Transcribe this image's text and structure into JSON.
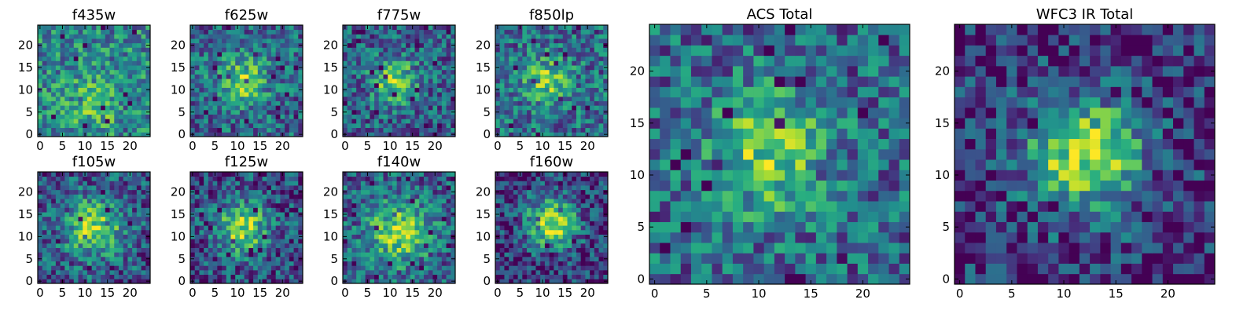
{
  "chart_data": [
    {
      "type": "heatmap",
      "title": "f435w",
      "grid_size": 25,
      "xlim": [
        -0.5,
        24.5
      ],
      "ylim": [
        -0.5,
        24.5
      ],
      "xticks": [
        0,
        5,
        10,
        15,
        20
      ],
      "yticks": [
        0,
        5,
        10,
        15,
        20
      ],
      "colormap": "viridis",
      "peak": [
        12,
        7
      ],
      "signal": 0.25,
      "sigma": 4.0,
      "seed": 11
    },
    {
      "type": "heatmap",
      "title": "f625w",
      "grid_size": 25,
      "xlim": [
        -0.5,
        24.5
      ],
      "ylim": [
        -0.5,
        24.5
      ],
      "xticks": [
        0,
        5,
        10,
        15,
        20
      ],
      "yticks": [
        0,
        5,
        10,
        15,
        20
      ],
      "colormap": "viridis",
      "peak": [
        11,
        12
      ],
      "signal": 0.45,
      "sigma": 4.0,
      "seed": 23
    },
    {
      "type": "heatmap",
      "title": "f775w",
      "grid_size": 25,
      "xlim": [
        -0.5,
        24.5
      ],
      "ylim": [
        -0.5,
        24.5
      ],
      "xticks": [
        0,
        5,
        10,
        15,
        20
      ],
      "yticks": [
        0,
        5,
        10,
        15,
        20
      ],
      "colormap": "viridis",
      "peak": [
        11,
        12
      ],
      "signal": 0.5,
      "sigma": 3.5,
      "seed": 37
    },
    {
      "type": "heatmap",
      "title": "f850lp",
      "grid_size": 25,
      "xlim": [
        -0.5,
        24.5
      ],
      "ylim": [
        -0.5,
        24.5
      ],
      "xticks": [
        0,
        5,
        10,
        15,
        20
      ],
      "yticks": [
        0,
        5,
        10,
        15,
        20
      ],
      "colormap": "viridis",
      "peak": [
        11,
        12
      ],
      "signal": 0.4,
      "sigma": 3.5,
      "seed": 41
    },
    {
      "type": "heatmap",
      "title": "f105w",
      "grid_size": 25,
      "xlim": [
        -0.5,
        24.5
      ],
      "ylim": [
        -0.5,
        24.5
      ],
      "xticks": [
        0,
        5,
        10,
        15,
        20
      ],
      "yticks": [
        0,
        5,
        10,
        15,
        20
      ],
      "colormap": "viridis",
      "peak": [
        12,
        12
      ],
      "signal": 0.55,
      "sigma": 4.5,
      "seed": 53
    },
    {
      "type": "heatmap",
      "title": "f125w",
      "grid_size": 25,
      "xlim": [
        -0.5,
        24.5
      ],
      "ylim": [
        -0.5,
        24.5
      ],
      "xticks": [
        0,
        5,
        10,
        15,
        20
      ],
      "yticks": [
        0,
        5,
        10,
        15,
        20
      ],
      "colormap": "viridis",
      "peak": [
        11,
        12
      ],
      "signal": 0.6,
      "sigma": 4.0,
      "seed": 67
    },
    {
      "type": "heatmap",
      "title": "f140w",
      "grid_size": 25,
      "xlim": [
        -0.5,
        24.5
      ],
      "ylim": [
        -0.5,
        24.5
      ],
      "xticks": [
        0,
        5,
        10,
        15,
        20
      ],
      "yticks": [
        0,
        5,
        10,
        15,
        20
      ],
      "colormap": "viridis",
      "peak": [
        12,
        11
      ],
      "signal": 0.5,
      "sigma": 5.0,
      "seed": 71
    },
    {
      "type": "heatmap",
      "title": "f160w",
      "grid_size": 25,
      "xlim": [
        -0.5,
        24.5
      ],
      "ylim": [
        -0.5,
        24.5
      ],
      "xticks": [
        0,
        5,
        10,
        15,
        20
      ],
      "yticks": [
        0,
        5,
        10,
        15,
        20
      ],
      "colormap": "viridis",
      "peak": [
        12,
        13
      ],
      "signal": 0.7,
      "sigma": 4.0,
      "seed": 83
    },
    {
      "type": "heatmap",
      "title": "ACS Total",
      "grid_size": 25,
      "xlim": [
        -0.5,
        24.5
      ],
      "ylim": [
        -0.5,
        24.5
      ],
      "xticks": [
        0,
        5,
        10,
        15,
        20
      ],
      "yticks": [
        0,
        5,
        10,
        15,
        20
      ],
      "colormap": "viridis",
      "peak": [
        11,
        12
      ],
      "signal": 0.45,
      "sigma": 4.0,
      "seed": 97
    },
    {
      "type": "heatmap",
      "title": "WFC3 IR Total",
      "grid_size": 25,
      "xlim": [
        -0.5,
        24.5
      ],
      "ylim": [
        -0.5,
        24.5
      ],
      "xticks": [
        0,
        5,
        10,
        15,
        20
      ],
      "yticks": [
        0,
        5,
        10,
        15,
        20
      ],
      "colormap": "viridis",
      "peak": [
        12,
        12
      ],
      "signal": 0.75,
      "sigma": 4.0,
      "seed": 101
    }
  ]
}
